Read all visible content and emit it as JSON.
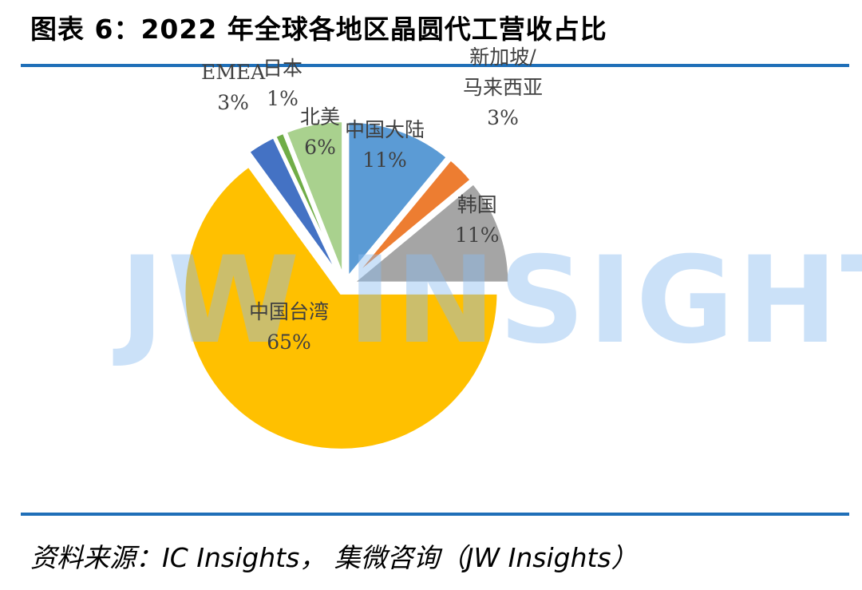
{
  "title": "图表 6：2022 年全球各地区晶圆代工营收占比",
  "watermark": "JW INSIGHTS",
  "source": "资料来源：IC Insights，  集微咨询（JW Insights）",
  "chart_data": {
    "type": "pie",
    "title": "图表 6：2022 年全球各地区晶圆代工营收占比",
    "slices": [
      {
        "name": "中国大陆",
        "value": 11,
        "label": "11%",
        "color": "#5b9bd5"
      },
      {
        "name": "新加坡/马来西亚",
        "value": 3,
        "label": "3%",
        "color": "#ed7d31"
      },
      {
        "name": "韩国",
        "value": 11,
        "label": "11%",
        "color": "#a5a5a5"
      },
      {
        "name": "中国台湾",
        "value": 65,
        "label": "65%",
        "color": "#ffc000"
      },
      {
        "name": "EMEA",
        "value": 3,
        "label": "3%",
        "color": "#4472c4"
      },
      {
        "name": "日本",
        "value": 1,
        "label": "1%",
        "color": "#70ad47"
      },
      {
        "name": "北美",
        "value": 6,
        "label": "6%",
        "color": "#a9d18e"
      }
    ]
  }
}
